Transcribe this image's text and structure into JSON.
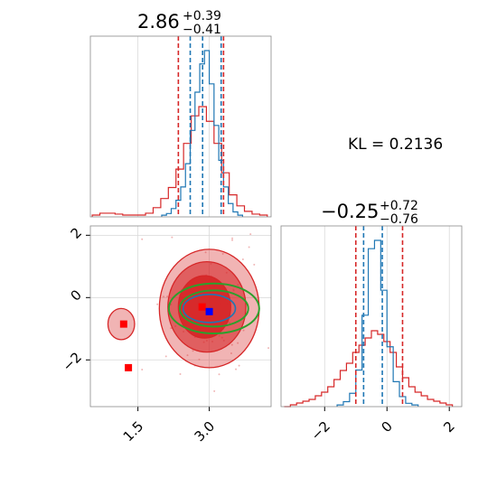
{
  "chart_data": {
    "type": "scatter",
    "kind": "corner-plot",
    "kl_text": "KL = 0.2136",
    "colors": {
      "posterior_a": "#d62728",
      "posterior_b": "#1f77b4",
      "contour_green": "#2ca02c",
      "truth_marker": "#0000ff",
      "samples_marker": "#ff0000"
    },
    "grid": true,
    "param1": {
      "title": {
        "median": "2.86",
        "plus": "+0.39",
        "minus": "−0.41"
      },
      "xlim": [
        0.5,
        4.3
      ],
      "xticks": [
        {
          "value": 1.5,
          "label": "1.5"
        },
        {
          "value": 3.0,
          "label": "3.0"
        }
      ],
      "quantiles_red": [
        2.35,
        3.3
      ],
      "quantiles_blue": [
        2.6,
        2.86,
        3.25
      ],
      "hist_red": {
        "centers": [
          0.62,
          0.78,
          0.94,
          1.1,
          1.26,
          1.42,
          1.58,
          1.74,
          1.9,
          2.06,
          2.22,
          2.38,
          2.54,
          2.7,
          2.86,
          3.02,
          3.18,
          3.34,
          3.5,
          3.66,
          3.82,
          3.98,
          4.14
        ],
        "heights": [
          0.01,
          0.02,
          0.02,
          0.015,
          0.01,
          0.01,
          0.01,
          0.02,
          0.05,
          0.1,
          0.16,
          0.26,
          0.4,
          0.55,
          0.6,
          0.52,
          0.4,
          0.24,
          0.12,
          0.06,
          0.03,
          0.015,
          0.01
        ]
      },
      "hist_blue": {
        "centers": [
          2.05,
          2.15,
          2.25,
          2.35,
          2.45,
          2.55,
          2.65,
          2.75,
          2.85,
          2.95,
          3.05,
          3.15,
          3.25,
          3.35,
          3.45,
          3.55,
          3.65
        ],
        "heights": [
          0.01,
          0.02,
          0.05,
          0.1,
          0.18,
          0.32,
          0.52,
          0.75,
          0.92,
          1.0,
          0.8,
          0.55,
          0.34,
          0.18,
          0.08,
          0.03,
          0.01
        ]
      }
    },
    "param2": {
      "title": {
        "median": "−0.25",
        "plus": "+0.72",
        "minus": "−0.76"
      },
      "xlim": [
        -3.4,
        2.4
      ],
      "xticks": [
        {
          "value": -2,
          "label": "−2"
        },
        {
          "value": 0,
          "label": "0"
        },
        {
          "value": 2,
          "label": "2"
        }
      ],
      "quantiles_red": [
        -1.0,
        0.5
      ],
      "quantiles_blue": [
        -0.75,
        -0.15
      ],
      "hist_red": {
        "centers": [
          -3.2,
          -3.0,
          -2.8,
          -2.6,
          -2.4,
          -2.2,
          -2.0,
          -1.8,
          -1.6,
          -1.4,
          -1.2,
          -1.0,
          -0.8,
          -0.6,
          -0.4,
          -0.2,
          0.0,
          0.2,
          0.4,
          0.6,
          0.8,
          1.0,
          1.2,
          1.4,
          1.6,
          1.8,
          2.0
        ],
        "heights": [
          0.0,
          0.01,
          0.02,
          0.03,
          0.04,
          0.06,
          0.08,
          0.11,
          0.15,
          0.2,
          0.24,
          0.3,
          0.34,
          0.38,
          0.42,
          0.4,
          0.36,
          0.3,
          0.22,
          0.16,
          0.11,
          0.08,
          0.06,
          0.04,
          0.03,
          0.02,
          0.01
        ]
      },
      "hist_blue": {
        "centers": [
          -1.5,
          -1.3,
          -1.1,
          -0.9,
          -0.7,
          -0.5,
          -0.3,
          -0.1,
          0.1,
          0.3,
          0.5,
          0.7,
          0.9
        ],
        "heights": [
          0.01,
          0.03,
          0.08,
          0.22,
          0.55,
          0.95,
          1.0,
          0.7,
          0.36,
          0.15,
          0.06,
          0.02,
          0.01
        ]
      }
    },
    "joint": {
      "xlim": [
        0.5,
        4.3
      ],
      "ylim": [
        -3.5,
        2.3
      ],
      "yticks": [
        {
          "value": -2,
          "label": "−2"
        },
        {
          "value": 0,
          "label": "0"
        },
        {
          "value": 2,
          "label": "2"
        }
      ],
      "contours_red": [
        {
          "cx": 3.0,
          "cy": -0.35,
          "rx": 1.05,
          "ry": 1.9,
          "level": "outer"
        },
        {
          "cx": 2.95,
          "cy": -0.3,
          "rx": 0.82,
          "ry": 1.45,
          "level": "mid"
        },
        {
          "cx": 2.9,
          "cy": -0.3,
          "rx": 0.55,
          "ry": 1.0,
          "level": "inner"
        },
        {
          "cx": 1.15,
          "cy": -0.85,
          "rx": 0.28,
          "ry": 0.5,
          "level": "outer"
        }
      ],
      "contours_green": [
        {
          "cx": 3.1,
          "cy": -0.35,
          "rx": 0.95,
          "ry": 0.8
        },
        {
          "cx": 3.1,
          "cy": -0.35,
          "rx": 0.72,
          "ry": 0.58
        }
      ],
      "contours_blue": [
        {
          "cx": 3.0,
          "cy": -0.35,
          "rx": 0.55,
          "ry": 0.45
        }
      ],
      "truth": {
        "x": 3.0,
        "y": -0.45
      },
      "markers_red": [
        {
          "x": 1.3,
          "y": -2.25
        },
        {
          "x": 1.2,
          "y": -0.85
        },
        {
          "x": 2.85,
          "y": -0.3
        }
      ]
    }
  }
}
